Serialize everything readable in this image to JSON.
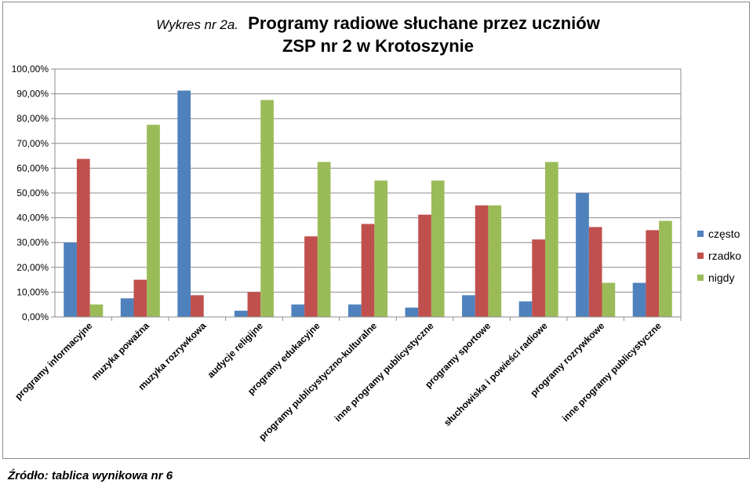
{
  "chart_data": {
    "type": "bar",
    "title_prefix": "Wykres nr 2a.",
    "title_line1": "Programy radiowe słuchane przez uczniów",
    "title_line2": "ZSP nr 2 w Krotoszynie",
    "xlabel": "",
    "ylabel": "",
    "ylim": [
      0,
      100
    ],
    "y_ticks": [
      "0,00%",
      "10,00%",
      "20,00%",
      "30,00%",
      "40,00%",
      "50,00%",
      "60,00%",
      "70,00%",
      "80,00%",
      "90,00%",
      "100,00%"
    ],
    "y_tick_values": [
      0,
      10,
      20,
      30,
      40,
      50,
      60,
      70,
      80,
      90,
      100
    ],
    "grid": true,
    "legend_position": "right",
    "categories": [
      "programy informacyjne",
      "muzyka poważna",
      "muzyka rozrywkowa",
      "audycje religijne",
      "programy edukacyjne",
      "programy publicystyczno-kulturalne",
      "inne programy publicystyczne",
      "programy sportowe",
      "słuchowiska i powieści radiowe",
      "programy rozrywkowe",
      "inne programy publicystyczne"
    ],
    "series": [
      {
        "name": "często",
        "color": "#4f81bd",
        "values": [
          30,
          7.5,
          91.3,
          2.5,
          5,
          5,
          3.75,
          8.75,
          6.25,
          50,
          13.75
        ]
      },
      {
        "name": "rzadko",
        "color": "#c0504d",
        "values": [
          63.75,
          15,
          8.75,
          10,
          32.5,
          37.5,
          41.25,
          45,
          31.25,
          36.25,
          35
        ]
      },
      {
        "name": "nigdy",
        "color": "#9bbb59",
        "values": [
          5,
          77.5,
          0,
          87.5,
          62.5,
          55,
          55,
          45,
          62.5,
          13.75,
          38.75
        ]
      }
    ]
  },
  "source_note": "Źródło: tablica wynikowa nr 6"
}
